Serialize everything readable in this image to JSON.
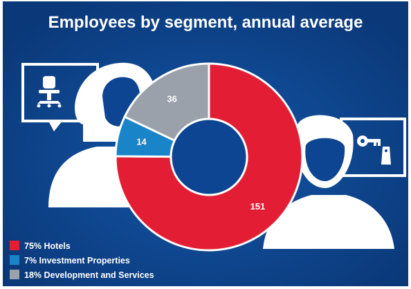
{
  "chart_data": {
    "type": "pie",
    "title": "Employees by segment, annual average",
    "categories": [
      "Hotels",
      "Investment Properties",
      "Development and Services"
    ],
    "values": [
      151,
      14,
      36
    ],
    "value_labels": [
      "151",
      "14",
      "36"
    ],
    "legend": [
      {
        "text": "75% Hotels",
        "color": "#e31e34"
      },
      {
        "text": "7% Investment Properties",
        "color": "#1a84c9"
      },
      {
        "text": "18% Development and Services",
        "color": "#9aa1ab"
      }
    ],
    "colors": [
      "#e31e34",
      "#1a84c9",
      "#9aa1ab"
    ],
    "donut": true,
    "legend_position": "bottom-left"
  },
  "theme": {
    "background": "#0d4592",
    "background_dark": "#093573",
    "figure_color": "#ffffff",
    "icons": [
      "office-chair-icon",
      "key-tag-icon"
    ]
  }
}
